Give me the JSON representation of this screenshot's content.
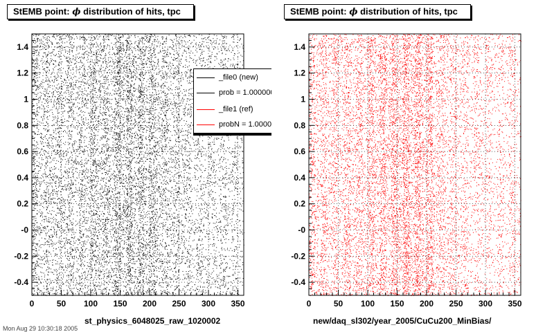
{
  "panels": [
    {
      "title_prefix": "StEMB point:",
      "title_symbol": "ϕ",
      "title_suffix": "distribution of hits, tpc",
      "xlabel": "st_physics_6048025_raw_1020002",
      "color": "#000000"
    },
    {
      "title_prefix": "StEMB point:",
      "title_symbol": "ϕ",
      "title_suffix": "distribution of hits, tpc",
      "xlabel": "new/daq_sl302/year_2005/CuCu200_MinBias/",
      "color": "#ff0000"
    }
  ],
  "legend": {
    "entries": [
      {
        "label": "_file0 (new)",
        "color": "#000000"
      },
      {
        "label": "prob = 1.000000",
        "color": "#000000"
      },
      {
        "label": "_file1 (ref)",
        "color": "#ff0000"
      },
      {
        "label": "probN = 1.000000",
        "color": "#ff0000"
      }
    ]
  },
  "footer": "Mon Aug 29 10:30:18 2005",
  "chart_data": [
    {
      "type": "scatter",
      "title": "StEMB point: ϕ distribution of hits, tpc",
      "xlabel": "st_physics_6048025_raw_1020002",
      "ylabel": "",
      "xlim": [
        0,
        360
      ],
      "ylim": [
        -0.5,
        1.5
      ],
      "xticks": [
        0,
        50,
        100,
        150,
        200,
        250,
        300,
        350
      ],
      "yticks": [
        -0.4,
        -0.2,
        0,
        0.2,
        0.4,
        0.6,
        0.8,
        1,
        1.2,
        1.4
      ],
      "ytick_labels": [
        "-0.4",
        "-0.2",
        "-0",
        "0.2",
        "0.4",
        "0.6",
        "0.8",
        "1",
        "1.2",
        "1.4"
      ],
      "grid": true,
      "marker_color": "#000000",
      "x_density_profile": {
        "x": [
          0,
          10,
          20,
          30,
          40,
          50,
          60,
          70,
          80,
          90,
          100,
          110,
          120,
          130,
          140,
          150,
          160,
          170,
          180,
          190,
          200,
          210,
          220,
          230,
          240,
          250,
          260,
          270,
          280,
          290,
          300,
          310,
          320,
          330,
          340,
          350
        ],
        "relative_density": [
          0.55,
          0.35,
          0.55,
          0.35,
          0.55,
          0.35,
          0.6,
          0.35,
          0.6,
          0.35,
          0.7,
          0.4,
          0.75,
          0.45,
          0.85,
          0.5,
          0.95,
          0.45,
          0.9,
          0.45,
          0.8,
          0.4,
          0.6,
          0.35,
          0.55,
          0.3,
          0.45,
          0.25,
          0.45,
          0.25,
          0.4,
          0.2,
          0.4,
          0.2,
          0.4,
          0.2
        ]
      },
      "points_drawn": 12000
    },
    {
      "type": "scatter",
      "title": "StEMB point: ϕ distribution of hits, tpc",
      "xlabel": "new/daq_sl302/year_2005/CuCu200_MinBias/",
      "ylabel": "",
      "xlim": [
        0,
        360
      ],
      "ylim": [
        -0.5,
        1.5
      ],
      "xticks": [
        0,
        50,
        100,
        150,
        200,
        250,
        300,
        350
      ],
      "yticks": [
        -0.4,
        -0.2,
        0,
        0.2,
        0.4,
        0.6,
        0.8,
        1,
        1.2,
        1.4
      ],
      "ytick_labels": [
        "-0.4",
        "-0.2",
        "-0",
        "0.2",
        "0.4",
        "0.6",
        "0.8",
        "1",
        "1.2",
        "1.4"
      ],
      "grid": true,
      "marker_color": "#ff0000",
      "x_density_profile": {
        "x": [
          0,
          10,
          20,
          30,
          40,
          50,
          60,
          70,
          80,
          90,
          100,
          110,
          120,
          130,
          140,
          150,
          160,
          170,
          180,
          190,
          200,
          210,
          220,
          230,
          240,
          250,
          260,
          270,
          280,
          290,
          300,
          310,
          320,
          330,
          340,
          350
        ],
        "relative_density": [
          0.5,
          0.3,
          0.5,
          0.3,
          0.5,
          0.3,
          0.55,
          0.3,
          0.55,
          0.3,
          0.65,
          0.35,
          0.7,
          0.4,
          0.8,
          0.45,
          0.9,
          0.45,
          0.85,
          0.4,
          0.75,
          0.35,
          0.5,
          0.3,
          0.45,
          0.25,
          0.35,
          0.2,
          0.35,
          0.2,
          0.3,
          0.15,
          0.3,
          0.15,
          0.3,
          0.15
        ]
      },
      "points_drawn": 12000
    }
  ]
}
